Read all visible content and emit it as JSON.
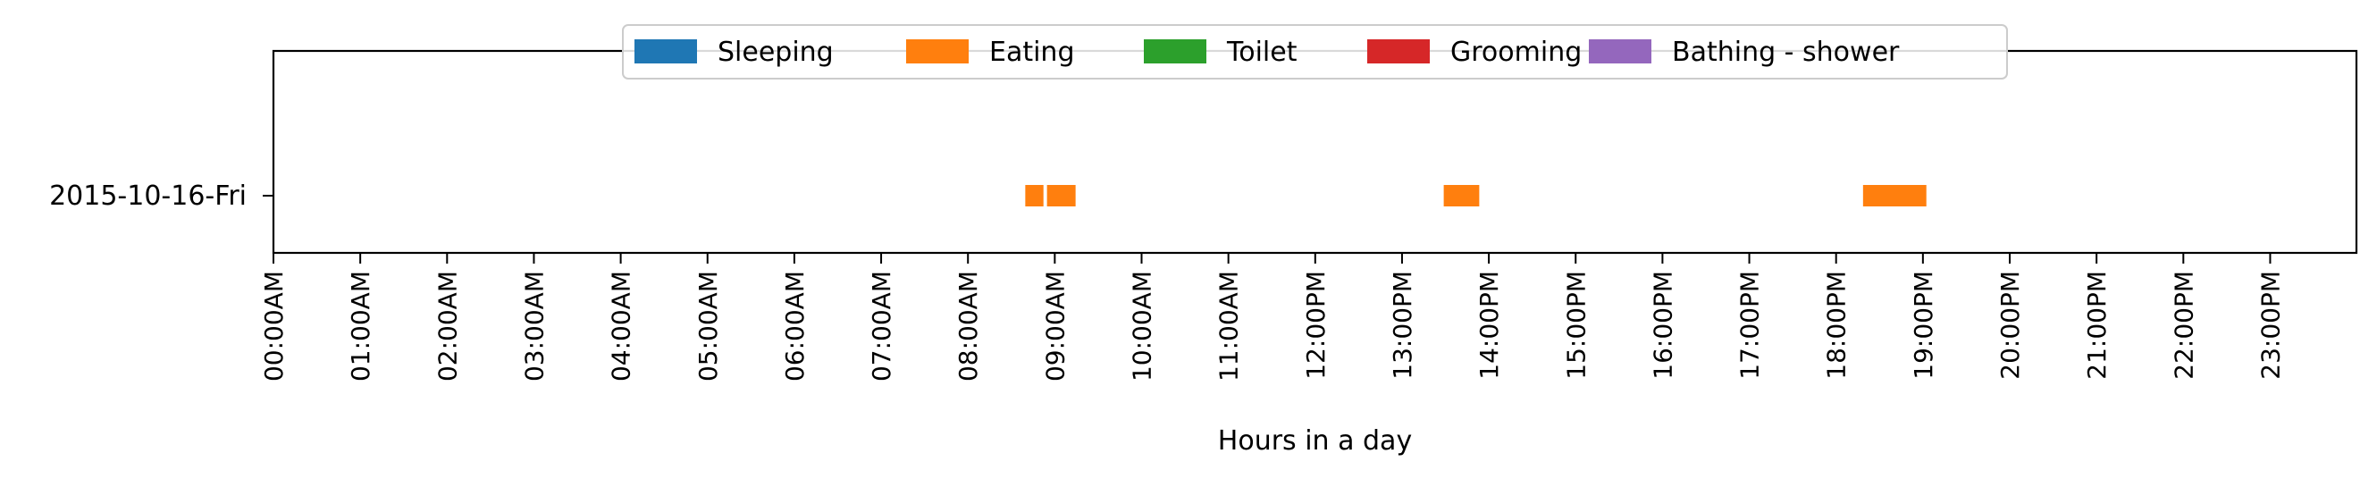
{
  "chart_data": {
    "type": "timeline",
    "xlabel": "Hours in a day",
    "x_unit": "hours",
    "xlim": [
      0,
      24
    ],
    "x_ticks": [
      {
        "value": 0,
        "label": "00:00AM"
      },
      {
        "value": 1,
        "label": "01:00AM"
      },
      {
        "value": 2,
        "label": "02:00AM"
      },
      {
        "value": 3,
        "label": "03:00AM"
      },
      {
        "value": 4,
        "label": "04:00AM"
      },
      {
        "value": 5,
        "label": "05:00AM"
      },
      {
        "value": 6,
        "label": "06:00AM"
      },
      {
        "value": 7,
        "label": "07:00AM"
      },
      {
        "value": 8,
        "label": "08:00AM"
      },
      {
        "value": 9,
        "label": "09:00AM"
      },
      {
        "value": 10,
        "label": "10:00AM"
      },
      {
        "value": 11,
        "label": "11:00AM"
      },
      {
        "value": 12,
        "label": "12:00PM"
      },
      {
        "value": 13,
        "label": "13:00PM"
      },
      {
        "value": 14,
        "label": "14:00PM"
      },
      {
        "value": 15,
        "label": "15:00PM"
      },
      {
        "value": 16,
        "label": "16:00PM"
      },
      {
        "value": 17,
        "label": "17:00PM"
      },
      {
        "value": 18,
        "label": "18:00PM"
      },
      {
        "value": 19,
        "label": "19:00PM"
      },
      {
        "value": 20,
        "label": "20:00PM"
      },
      {
        "value": 21,
        "label": "21:00PM"
      },
      {
        "value": 22,
        "label": "22:00PM"
      },
      {
        "value": 23,
        "label": "23:00PM"
      }
    ],
    "rows": [
      "2015-10-16-Fri"
    ],
    "legend_position": "top-center",
    "grid": false,
    "series": [
      {
        "name": "Sleeping",
        "color": "#1f77b4",
        "intervals": []
      },
      {
        "name": "Eating",
        "color": "#ff7f0e",
        "intervals": [
          {
            "row": "2015-10-16-Fri",
            "start": 8.65,
            "end": 8.88
          },
          {
            "row": "2015-10-16-Fri",
            "start": 8.9,
            "end": 9.25
          },
          {
            "row": "2015-10-16-Fri",
            "start": 13.47,
            "end": 13.9
          },
          {
            "row": "2015-10-16-Fri",
            "start": 18.3,
            "end": 19.05
          }
        ]
      },
      {
        "name": "Toilet",
        "color": "#2ca02c",
        "intervals": []
      },
      {
        "name": "Grooming",
        "color": "#d62728",
        "intervals": []
      },
      {
        "name": "Bathing - shower",
        "color": "#9467bd",
        "intervals": []
      }
    ]
  }
}
